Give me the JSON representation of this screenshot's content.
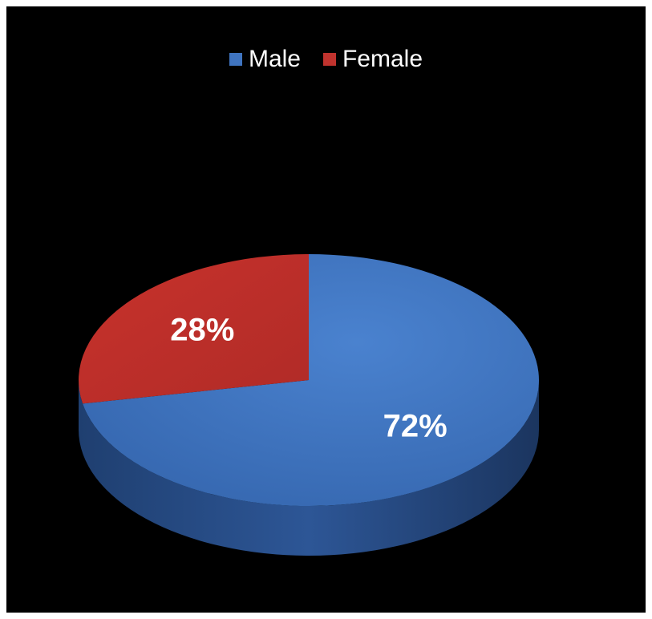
{
  "chart_data": {
    "type": "pie",
    "title": "",
    "legend_position": "top",
    "slices": [
      {
        "name": "Male",
        "value": 72,
        "label": "72%",
        "color": "#3f74c0"
      },
      {
        "name": "Female",
        "value": 28,
        "label": "28%",
        "color": "#c0332e"
      }
    ]
  }
}
